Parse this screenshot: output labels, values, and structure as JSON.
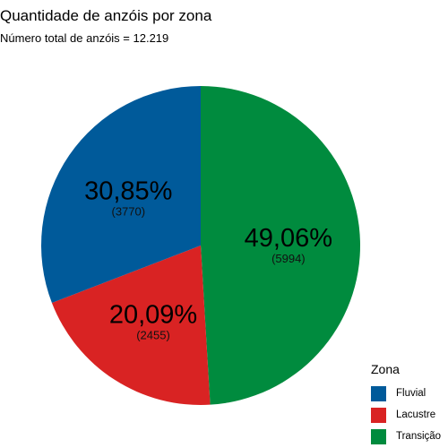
{
  "chart_data": {
    "type": "pie",
    "title": "Quantidade de anzóis por zona",
    "subtitle": "Número total de anzóis = 12.219",
    "slices": [
      {
        "name": "Transição",
        "value": 5994,
        "percent_label": "49,06%",
        "count_label": "(5994)",
        "color": "#008B3E"
      },
      {
        "name": "Lacustre",
        "value": 2455,
        "percent_label": "20,09%",
        "count_label": "(2455)",
        "color": "#D92323"
      },
      {
        "name": "Fluvial",
        "value": 3770,
        "percent_label": "30,85%",
        "count_label": "(3770)",
        "color": "#005A9A"
      }
    ],
    "legend": {
      "title": "Zona",
      "position": "bottom-right",
      "items": [
        {
          "label": "Fluvial",
          "color": "#005A9A"
        },
        {
          "label": "Lacustre",
          "color": "#D92323"
        },
        {
          "label": "Transição",
          "color": "#008B3E"
        }
      ]
    }
  }
}
